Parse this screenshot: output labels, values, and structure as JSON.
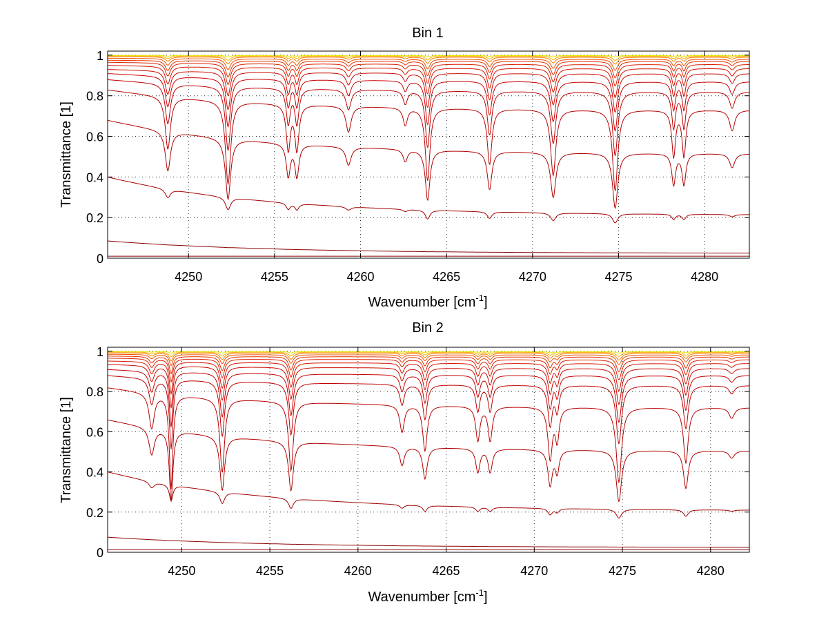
{
  "chart_data": [
    {
      "type": "line",
      "title": "Bin 1",
      "xlabel": "Wavenumber [cm",
      "xlabel_sup": "-1",
      "xlabel_end": "]",
      "ylabel": "Transmittance [1]",
      "xlim": [
        4245.3,
        4282.6
      ],
      "ylim": [
        0,
        1.02
      ],
      "grid": true,
      "xticks": [
        4250,
        4255,
        4260,
        4265,
        4270,
        4275,
        4280
      ],
      "yticks": [
        0,
        0.2,
        0.4,
        0.6,
        0.8,
        1
      ],
      "ytick_labels": [
        "0",
        "0.2",
        "0.4",
        "0.6",
        "0.8",
        "1"
      ],
      "absorption_lines": [
        {
          "x": 4248.8,
          "depth": 0.42,
          "width": 0.18
        },
        {
          "x": 4252.3,
          "depth": 0.68,
          "width": 0.18
        },
        {
          "x": 4255.8,
          "depth": 0.38,
          "width": 0.14
        },
        {
          "x": 4256.3,
          "depth": 0.38,
          "width": 0.14
        },
        {
          "x": 4259.3,
          "depth": 0.22,
          "width": 0.18
        },
        {
          "x": 4262.6,
          "depth": 0.15,
          "width": 0.15
        },
        {
          "x": 4263.9,
          "depth": 0.62,
          "width": 0.16
        },
        {
          "x": 4267.5,
          "depth": 0.48,
          "width": 0.16
        },
        {
          "x": 4271.2,
          "depth": 0.57,
          "width": 0.18
        },
        {
          "x": 4274.8,
          "depth": 0.7,
          "width": 0.18
        },
        {
          "x": 4278.2,
          "depth": 0.4,
          "width": 0.13
        },
        {
          "x": 4278.8,
          "depth": 0.4,
          "width": 0.13
        },
        {
          "x": 4281.6,
          "depth": 0.18,
          "width": 0.18
        }
      ],
      "series": [
        {
          "baseline_start": 0.0,
          "baseline_end": 0.0,
          "scale": 0.0,
          "color": "#8b0000"
        },
        {
          "baseline_start": 0.01,
          "baseline_end": 0.01,
          "scale": 0.0,
          "color": "#8b0000"
        },
        {
          "baseline_start": 0.085,
          "baseline_end": 0.025,
          "scale": 0.02,
          "color": "#8b0000"
        },
        {
          "baseline_start": 0.4,
          "baseline_end": 0.215,
          "scale": 0.3,
          "color": "#a00000"
        },
        {
          "baseline_start": 0.68,
          "baseline_end": 0.515,
          "scale": 0.75,
          "color": "#b00000"
        },
        {
          "baseline_start": 0.83,
          "baseline_end": 0.73,
          "scale": 0.78,
          "color": "#b80000"
        },
        {
          "baseline_start": 0.88,
          "baseline_end": 0.82,
          "scale": 0.55,
          "color": "#c00000"
        },
        {
          "baseline_start": 0.91,
          "baseline_end": 0.87,
          "scale": 0.4,
          "color": "#c80000"
        },
        {
          "baseline_start": 0.93,
          "baseline_end": 0.91,
          "scale": 0.3,
          "color": "#cc0a00"
        },
        {
          "baseline_start": 0.95,
          "baseline_end": 0.935,
          "scale": 0.22,
          "color": "#d41400"
        },
        {
          "baseline_start": 0.965,
          "baseline_end": 0.955,
          "scale": 0.16,
          "color": "#dc2000"
        },
        {
          "baseline_start": 0.975,
          "baseline_end": 0.97,
          "scale": 0.12,
          "color": "#e43000"
        },
        {
          "baseline_start": 0.985,
          "baseline_end": 0.98,
          "scale": 0.08,
          "color": "#ee5000"
        },
        {
          "baseline_start": 0.992,
          "baseline_end": 0.99,
          "scale": 0.05,
          "color": "#f58000"
        },
        {
          "baseline_start": 0.996,
          "baseline_end": 0.995,
          "scale": 0.03,
          "color": "#fbb000"
        },
        {
          "baseline_start": 0.999,
          "baseline_end": 0.998,
          "scale": 0.01,
          "color": "#e8e800"
        }
      ]
    },
    {
      "type": "line",
      "title": "Bin 2",
      "xlabel": "Wavenumber [cm",
      "xlabel_sup": "-1",
      "xlabel_end": "]",
      "ylabel": "Transmittance [1]",
      "xlim": [
        4245.8,
        4282.2
      ],
      "ylim": [
        0,
        1.02
      ],
      "grid": true,
      "xticks": [
        4250,
        4255,
        4260,
        4265,
        4270,
        4275,
        4280
      ],
      "yticks": [
        0,
        0.2,
        0.4,
        0.6,
        0.8,
        1
      ],
      "ytick_labels": [
        "0",
        "0.2",
        "0.4",
        "0.6",
        "0.8",
        "1"
      ],
      "absorption_lines": [
        {
          "x": 4248.3,
          "depth": 0.3,
          "width": 0.18
        },
        {
          "x": 4249.4,
          "depth": 0.8,
          "width": 0.12
        },
        {
          "x": 4252.3,
          "depth": 0.65,
          "width": 0.16
        },
        {
          "x": 4256.2,
          "depth": 0.62,
          "width": 0.16
        },
        {
          "x": 4262.5,
          "depth": 0.25,
          "width": 0.15
        },
        {
          "x": 4263.8,
          "depth": 0.42,
          "width": 0.15
        },
        {
          "x": 4266.8,
          "depth": 0.32,
          "width": 0.14
        },
        {
          "x": 4267.5,
          "depth": 0.32,
          "width": 0.14
        },
        {
          "x": 4270.9,
          "depth": 0.48,
          "width": 0.15
        },
        {
          "x": 4271.3,
          "depth": 0.3,
          "width": 0.13
        },
        {
          "x": 4274.8,
          "depth": 0.7,
          "width": 0.18
        },
        {
          "x": 4278.6,
          "depth": 0.52,
          "width": 0.16
        },
        {
          "x": 4281.2,
          "depth": 0.1,
          "width": 0.18
        }
      ],
      "series": [
        {
          "baseline_start": 0.0,
          "baseline_end": 0.0,
          "scale": 0.0,
          "color": "#8b0000"
        },
        {
          "baseline_start": 0.012,
          "baseline_end": 0.012,
          "scale": 0.0,
          "color": "#8b0000"
        },
        {
          "baseline_start": 0.075,
          "baseline_end": 0.025,
          "scale": 0.02,
          "color": "#8b0000"
        },
        {
          "baseline_start": 0.4,
          "baseline_end": 0.21,
          "scale": 0.3,
          "color": "#a00000"
        },
        {
          "baseline_start": 0.66,
          "baseline_end": 0.505,
          "scale": 0.72,
          "color": "#b00000"
        },
        {
          "baseline_start": 0.82,
          "baseline_end": 0.72,
          "scale": 0.74,
          "color": "#b80000"
        },
        {
          "baseline_start": 0.88,
          "baseline_end": 0.83,
          "scale": 0.5,
          "color": "#c00000"
        },
        {
          "baseline_start": 0.91,
          "baseline_end": 0.88,
          "scale": 0.38,
          "color": "#c80000"
        },
        {
          "baseline_start": 0.935,
          "baseline_end": 0.915,
          "scale": 0.28,
          "color": "#cc0a00"
        },
        {
          "baseline_start": 0.952,
          "baseline_end": 0.94,
          "scale": 0.21,
          "color": "#d41400"
        },
        {
          "baseline_start": 0.966,
          "baseline_end": 0.958,
          "scale": 0.15,
          "color": "#dc2000"
        },
        {
          "baseline_start": 0.976,
          "baseline_end": 0.972,
          "scale": 0.11,
          "color": "#e43000"
        },
        {
          "baseline_start": 0.985,
          "baseline_end": 0.982,
          "scale": 0.07,
          "color": "#ee5000"
        },
        {
          "baseline_start": 0.992,
          "baseline_end": 0.99,
          "scale": 0.05,
          "color": "#f58000"
        },
        {
          "baseline_start": 0.996,
          "baseline_end": 0.995,
          "scale": 0.03,
          "color": "#fbb000"
        },
        {
          "baseline_start": 0.999,
          "baseline_end": 0.998,
          "scale": 0.01,
          "color": "#e8e800"
        }
      ]
    }
  ]
}
